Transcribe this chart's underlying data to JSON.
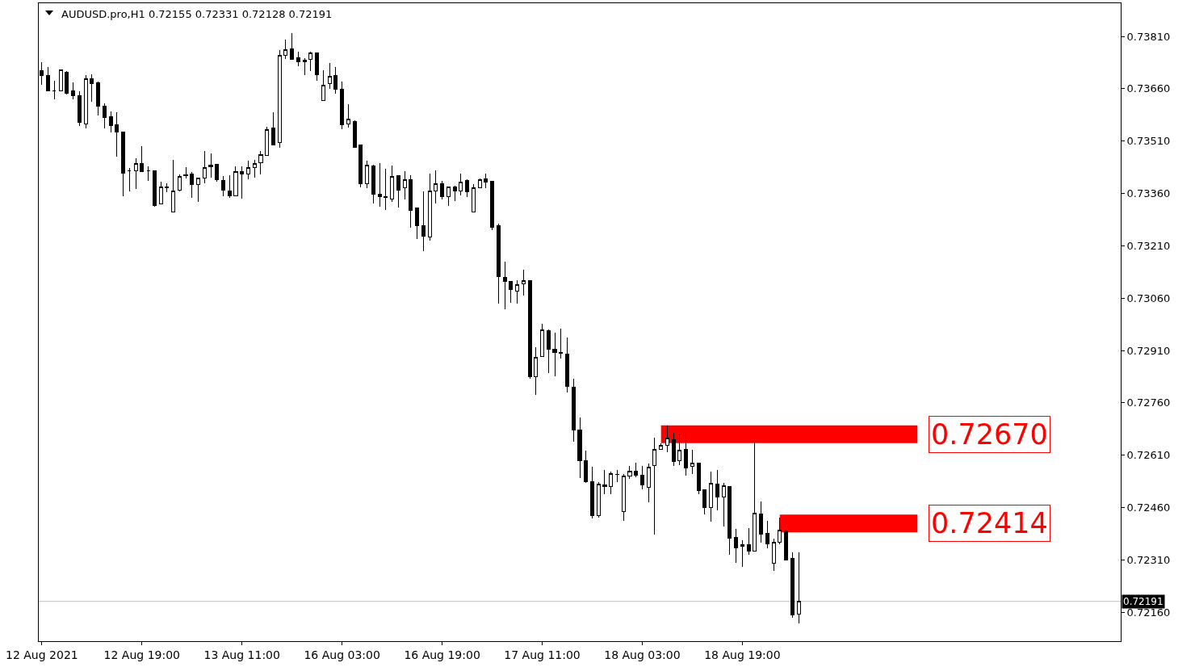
{
  "chart_data": {
    "type": "candlestick",
    "title": "AUDUSD.pro,H1 0.72155 0.72331 0.72128 0.72191",
    "color": "#000000",
    "categories": [
      "12 Aug 2021",
      null,
      null,
      null,
      null,
      null,
      null,
      null,
      null,
      null,
      null,
      null,
      null,
      null,
      null,
      null,
      "12 Aug 19:00",
      null,
      null,
      null,
      null,
      null,
      null,
      null,
      null,
      null,
      null,
      null,
      null,
      null,
      null,
      null,
      "13 Aug 11:00",
      null,
      null,
      null,
      null,
      null,
      null,
      null,
      null,
      null,
      null,
      null,
      null,
      null,
      null,
      null,
      "16 Aug 03:00",
      null,
      null,
      null,
      null,
      null,
      null,
      null,
      null,
      null,
      null,
      null,
      null,
      null,
      null,
      null,
      "16 Aug 19:00",
      null,
      null,
      null,
      null,
      null,
      null,
      null,
      null,
      null,
      null,
      null,
      null,
      null,
      null,
      null,
      "17 Aug 11:00",
      null,
      null,
      null,
      null,
      null,
      null,
      null,
      null,
      null,
      null,
      null,
      null,
      null,
      null,
      null,
      "18 Aug 03:00",
      null,
      null,
      null,
      null,
      null,
      null,
      null,
      null,
      null,
      null,
      null,
      null,
      null,
      null,
      null,
      "18 Aug 19:00",
      null,
      null,
      null,
      null,
      null,
      null,
      null,
      null,
      null,
      null,
      null,
      null,
      null,
      null,
      null,
      null,
      null,
      null,
      null,
      null,
      null,
      null,
      null,
      null,
      null,
      null,
      null,
      null,
      null,
      null,
      null,
      null,
      null,
      null,
      null,
      null,
      null,
      null,
      null,
      null,
      null,
      null,
      null,
      null,
      null,
      null,
      null,
      null,
      null,
      null,
      null,
      null,
      null,
      null,
      null,
      null,
      null,
      null,
      null,
      null
    ],
    "ohlc": [
      [
        0.73711,
        0.73736,
        0.73671,
        0.73699
      ],
      [
        0.73697,
        0.73722,
        0.73653,
        0.73655
      ],
      [
        0.73655,
        0.73683,
        0.7363,
        0.73655
      ],
      [
        0.73655,
        0.73713,
        0.73653,
        0.73713
      ],
      [
        0.73708,
        0.73711,
        0.73644,
        0.73648
      ],
      [
        0.73653,
        0.73678,
        0.7363,
        0.73639
      ],
      [
        0.73639,
        0.73653,
        0.73554,
        0.73563
      ],
      [
        0.7356,
        0.73699,
        0.73547,
        0.73688
      ],
      [
        0.73688,
        0.73701,
        0.73623,
        0.73674
      ],
      [
        0.73676,
        0.73681,
        0.73584,
        0.73609
      ],
      [
        0.73611,
        0.73618,
        0.73547,
        0.73577
      ],
      [
        0.73579,
        0.73595,
        0.73535,
        0.73554
      ],
      [
        0.73556,
        0.73593,
        0.73466,
        0.73537
      ],
      [
        0.73537,
        0.73537,
        0.73352,
        0.73419
      ],
      [
        0.73424,
        0.73433,
        0.73366,
        0.73424
      ],
      [
        0.73424,
        0.73461,
        0.73373,
        0.73445
      ],
      [
        0.73445,
        0.73496,
        0.73422,
        0.73422
      ],
      [
        0.73424,
        0.73438,
        0.73396,
        0.73424
      ],
      [
        0.73424,
        0.73424,
        0.73322,
        0.73325
      ],
      [
        0.73329,
        0.73394,
        0.73329,
        0.73378
      ],
      [
        0.73376,
        0.73389,
        0.73364,
        0.73378
      ],
      [
        0.73306,
        0.73456,
        0.73306,
        0.73366
      ],
      [
        0.73369,
        0.73415,
        0.73366,
        0.73408
      ],
      [
        0.7341,
        0.73436,
        0.73403,
        0.73413
      ],
      [
        0.73415,
        0.73422,
        0.73348,
        0.73385
      ],
      [
        0.73385,
        0.73406,
        0.73336,
        0.73403
      ],
      [
        0.73403,
        0.73482,
        0.73389,
        0.73433
      ],
      [
        0.73436,
        0.73475,
        0.73406,
        0.7344
      ],
      [
        0.73443,
        0.73443,
        0.73394,
        0.73399
      ],
      [
        0.73396,
        0.7341,
        0.73352,
        0.73369
      ],
      [
        0.73366,
        0.73413,
        0.73348,
        0.73352
      ],
      [
        0.73352,
        0.73438,
        0.73352,
        0.73422
      ],
      [
        0.73422,
        0.73438,
        0.73346,
        0.73415
      ],
      [
        0.73415,
        0.73454,
        0.73401,
        0.73433
      ],
      [
        0.73433,
        0.73456,
        0.73406,
        0.73445
      ],
      [
        0.73447,
        0.73482,
        0.73415,
        0.7347
      ],
      [
        0.73468,
        0.73551,
        0.73468,
        0.73544
      ],
      [
        0.73547,
        0.73593,
        0.735,
        0.735
      ],
      [
        0.73507,
        0.73771,
        0.73491,
        0.73755
      ],
      [
        0.73755,
        0.73801,
        0.73745,
        0.73771
      ],
      [
        0.73775,
        0.73819,
        0.73745,
        0.73745
      ],
      [
        0.73748,
        0.73766,
        0.73725,
        0.73738
      ],
      [
        0.73738,
        0.73748,
        0.73699,
        0.73743
      ],
      [
        0.73745,
        0.73766,
        0.73711,
        0.73762
      ],
      [
        0.73762,
        0.73762,
        0.73683,
        0.73701
      ],
      [
        0.73627,
        0.73713,
        0.73627,
        0.73669
      ],
      [
        0.73674,
        0.73734,
        0.7366,
        0.73695
      ],
      [
        0.73697,
        0.73722,
        0.73646,
        0.73658
      ],
      [
        0.73658,
        0.73681,
        0.73544,
        0.73556
      ],
      [
        0.73558,
        0.73616,
        0.73549,
        0.73572
      ],
      [
        0.73567,
        0.7357,
        0.73491,
        0.73493
      ],
      [
        0.73498,
        0.73498,
        0.73378,
        0.73389
      ],
      [
        0.73387,
        0.73454,
        0.73376,
        0.7344
      ],
      [
        0.73438,
        0.73443,
        0.73332,
        0.73357
      ],
      [
        0.73357,
        0.73447,
        0.73322,
        0.7335
      ],
      [
        0.7335,
        0.73431,
        0.73313,
        0.73348
      ],
      [
        0.73343,
        0.7344,
        0.73336,
        0.73408
      ],
      [
        0.7341,
        0.73413,
        0.7332,
        0.73369
      ],
      [
        0.73376,
        0.73424,
        0.73343,
        0.73399
      ],
      [
        0.73399,
        0.73413,
        0.73262,
        0.73311
      ],
      [
        0.73318,
        0.73318,
        0.7323,
        0.73267
      ],
      [
        0.73267,
        0.73366,
        0.73195,
        0.73237
      ],
      [
        0.73235,
        0.73417,
        0.73225,
        0.73366
      ],
      [
        0.73366,
        0.73426,
        0.73332,
        0.73387
      ],
      [
        0.73389,
        0.73396,
        0.73343,
        0.7335
      ],
      [
        0.7335,
        0.73378,
        0.73325,
        0.73378
      ],
      [
        0.73378,
        0.73383,
        0.73339,
        0.73366
      ],
      [
        0.73366,
        0.73417,
        0.73355,
        0.73392
      ],
      [
        0.73396,
        0.73401,
        0.7335,
        0.73364
      ],
      [
        0.73306,
        0.73387,
        0.73306,
        0.73376
      ],
      [
        0.73376,
        0.73403,
        0.73376,
        0.73399
      ],
      [
        0.73401,
        0.73417,
        0.73376,
        0.73392
      ],
      [
        0.73394,
        0.73394,
        0.73255,
        0.73262
      ],
      [
        0.73267,
        0.73274,
        0.73045,
        0.73121
      ],
      [
        0.73119,
        0.73165,
        0.73029,
        0.73108
      ],
      [
        0.73108,
        0.73108,
        0.73047,
        0.73084
      ],
      [
        0.7308,
        0.73112,
        0.73045,
        0.73098
      ],
      [
        0.73101,
        0.73142,
        0.73068,
        0.7311
      ],
      [
        0.7311,
        0.7311,
        0.72828,
        0.72835
      ],
      [
        0.72835,
        0.7292,
        0.72782,
        0.7289
      ],
      [
        0.72893,
        0.72987,
        0.72893,
        0.72969
      ],
      [
        0.72967,
        0.72971,
        0.72846,
        0.72913
      ],
      [
        0.72913,
        0.72962,
        0.72835,
        0.72904
      ],
      [
        0.72904,
        0.72973,
        0.72886,
        0.72902
      ],
      [
        0.729,
        0.72946,
        0.72789,
        0.72807
      ],
      [
        0.72805,
        0.72828,
        0.72648,
        0.72682
      ],
      [
        0.72682,
        0.72719,
        0.72544,
        0.72594
      ],
      [
        0.72594,
        0.72622,
        0.7253,
        0.72534
      ],
      [
        0.72534,
        0.72576,
        0.72428,
        0.72437
      ],
      [
        0.72437,
        0.72534,
        0.7243,
        0.72527
      ],
      [
        0.72525,
        0.72567,
        0.72497,
        0.72521
      ],
      [
        0.72521,
        0.72562,
        0.72497,
        0.72557
      ],
      [
        0.72555,
        0.72567,
        0.72532,
        0.72555
      ],
      [
        0.72449,
        0.72557,
        0.72421,
        0.72551
      ],
      [
        0.72551,
        0.72578,
        0.72541,
        0.72564
      ],
      [
        0.72564,
        0.72588,
        0.72546,
        0.72553
      ],
      [
        0.72553,
        0.72578,
        0.72511,
        0.72525
      ],
      [
        0.72518,
        0.72585,
        0.72474,
        0.72576
      ],
      [
        0.72581,
        0.72661,
        0.72382,
        0.72627
      ],
      [
        0.72627,
        0.72645,
        0.72625,
        0.72638
      ],
      [
        0.72638,
        0.72694,
        0.72618,
        0.72659
      ],
      [
        0.72655,
        0.72673,
        0.72578,
        0.72592
      ],
      [
        0.72594,
        0.72671,
        0.72581,
        0.72625
      ],
      [
        0.72627,
        0.72673,
        0.72551,
        0.72574
      ],
      [
        0.72578,
        0.72625,
        0.72555,
        0.72588
      ],
      [
        0.72588,
        0.72588,
        0.72497,
        0.72509
      ],
      [
        0.72511,
        0.72511,
        0.7244,
        0.7246
      ],
      [
        0.7246,
        0.72562,
        0.72419,
        0.7253
      ],
      [
        0.72527,
        0.72567,
        0.72451,
        0.7249
      ],
      [
        0.7249,
        0.7253,
        0.72405,
        0.72523
      ],
      [
        0.72521,
        0.72521,
        0.72324,
        0.72373
      ],
      [
        0.72375,
        0.72398,
        0.72301,
        0.72345
      ],
      [
        0.7235,
        0.72366,
        0.72289,
        0.72354
      ],
      [
        0.72354,
        0.724,
        0.72324,
        0.72336
      ],
      [
        0.72336,
        0.72648,
        0.72336,
        0.72444
      ],
      [
        0.72442,
        0.72477,
        0.72359,
        0.72384
      ],
      [
        0.72386,
        0.72421,
        0.72343,
        0.72356
      ],
      [
        0.72301,
        0.7237,
        0.72278,
        0.72361
      ],
      [
        0.72361,
        0.7243,
        0.72354,
        0.72396
      ],
      [
        0.72393,
        0.72398,
        0.72308,
        0.7231
      ],
      [
        0.72315,
        0.72331,
        0.72144,
        0.72153
      ],
      [
        0.72155,
        0.72331,
        0.72128,
        0.72191
      ],
      null,
      null,
      null,
      null,
      null,
      null,
      null,
      null,
      null,
      null,
      null,
      null,
      null,
      null,
      null,
      null,
      null,
      null,
      null,
      null,
      null,
      null,
      null,
      null,
      null,
      null,
      null,
      null,
      null,
      null,
      null,
      null,
      null,
      null,
      null,
      null,
      null,
      null,
      null,
      null,
      null,
      null,
      null,
      null,
      null,
      null,
      null,
      null,
      null,
      null,
      null
    ],
    "series": [
      {
        "type": "line",
        "color": "#ff0000",
        "values": [
          null,
          null,
          null,
          null,
          null,
          null,
          null,
          null,
          null,
          null,
          null,
          null,
          null,
          null,
          null,
          null,
          null,
          null,
          null,
          null,
          null,
          null,
          null,
          null,
          null,
          null,
          null,
          null,
          null,
          null,
          null,
          null,
          null,
          null,
          null,
          null,
          null,
          null,
          null,
          null,
          null,
          null,
          null,
          null,
          null,
          null,
          null,
          null,
          null,
          null,
          null,
          null,
          null,
          null,
          null,
          null,
          null,
          null,
          null,
          null,
          null,
          null,
          null,
          null,
          null,
          null,
          null,
          null,
          null,
          null,
          null,
          null,
          null,
          null,
          null,
          null,
          null,
          null,
          null,
          null,
          null,
          null,
          null,
          null,
          null,
          null,
          null,
          null,
          null,
          null,
          null,
          null,
          null,
          null,
          null,
          null,
          null,
          null,
          null,
          0.7267,
          0.7267,
          0.7267,
          0.7267,
          0.7267,
          0.7267,
          0.7267,
          0.7267,
          0.7267,
          0.7267,
          0.7267,
          0.7267,
          0.7267,
          0.7267,
          0.7267,
          0.7267,
          0.7267,
          0.7267,
          0.7267,
          0.7267,
          0.7267,
          0.7267,
          0.7267,
          0.7267,
          0.7267,
          0.7267,
          0.7267,
          0.7267,
          0.7267,
          0.7267,
          0.7267,
          0.7267,
          0.7267,
          0.7267,
          0.7267,
          0.7267,
          0.7267,
          0.7267,
          0.7267,
          0.7267,
          0.7267,
          0.7267,
          null,
          null,
          null,
          null,
          null,
          null,
          null,
          null,
          null,
          null,
          null,
          null,
          null,
          null,
          null,
          null,
          null,
          null,
          null,
          null,
          null,
          null,
          null,
          null,
          null,
          null,
          null,
          null,
          null,
          null,
          null,
          null
        ],
        "value_labels": [
          null,
          null,
          null,
          null,
          null,
          null,
          null,
          null,
          null,
          null,
          null,
          null,
          null,
          null,
          null,
          null,
          null,
          null,
          null,
          null,
          null,
          null,
          null,
          null,
          null,
          null,
          null,
          null,
          null,
          null,
          null,
          null,
          null,
          null,
          null,
          null,
          null,
          null,
          null,
          null,
          null,
          null,
          null,
          null,
          null,
          null,
          null,
          null,
          null,
          null,
          null,
          null,
          null,
          null,
          null,
          null,
          null,
          null,
          null,
          null,
          null,
          null,
          null,
          null,
          null,
          null,
          null,
          null,
          null,
          null,
          null,
          null,
          null,
          null,
          null,
          null,
          null,
          null,
          null,
          null,
          null,
          null,
          null,
          null,
          null,
          null,
          null,
          null,
          null,
          null,
          null,
          null,
          null,
          null,
          null,
          null,
          null,
          null,
          null,
          null,
          null,
          null,
          null,
          null,
          null,
          null,
          null,
          null,
          null,
          null,
          null,
          null,
          null,
          null,
          null,
          null,
          null,
          null,
          null,
          null,
          null,
          null,
          null,
          null,
          null,
          null,
          null,
          null,
          null,
          null,
          null,
          null,
          null,
          null,
          null,
          null,
          null,
          null,
          null,
          null,
          "0.72670",
          null,
          null,
          null,
          null,
          null,
          null,
          null,
          null,
          null,
          null,
          null,
          null,
          null,
          null,
          null,
          null,
          null,
          null,
          null,
          null,
          null,
          null,
          null,
          null,
          null,
          null,
          null,
          null,
          null,
          null,
          null,
          null
        ]
      },
      {
        "type": "line",
        "color": "#ff0000",
        "values": [
          null,
          null,
          null,
          null,
          null,
          null,
          null,
          null,
          null,
          null,
          null,
          null,
          null,
          null,
          null,
          null,
          null,
          null,
          null,
          null,
          null,
          null,
          null,
          null,
          null,
          null,
          null,
          null,
          null,
          null,
          null,
          null,
          null,
          null,
          null,
          null,
          null,
          null,
          null,
          null,
          null,
          null,
          null,
          null,
          null,
          null,
          null,
          null,
          null,
          null,
          null,
          null,
          null,
          null,
          null,
          null,
          null,
          null,
          null,
          null,
          null,
          null,
          null,
          null,
          null,
          null,
          null,
          null,
          null,
          null,
          null,
          null,
          null,
          null,
          null,
          null,
          null,
          null,
          null,
          null,
          null,
          null,
          null,
          null,
          null,
          null,
          null,
          null,
          null,
          null,
          null,
          null,
          null,
          null,
          null,
          null,
          null,
          null,
          null,
          null,
          null,
          null,
          null,
          null,
          null,
          null,
          null,
          null,
          null,
          null,
          null,
          null,
          null,
          null,
          null,
          null,
          null,
          null,
          0.72414,
          0.72414,
          0.72414,
          0.72414,
          0.72414,
          0.72414,
          0.72414,
          0.72414,
          0.72414,
          0.72414,
          0.72414,
          0.72414,
          0.72414,
          0.72414,
          0.72414,
          0.72414,
          0.72414,
          0.72414,
          0.72414,
          0.72414,
          0.72414,
          0.72414,
          0.72414,
          null,
          null,
          null,
          null,
          null,
          null,
          null,
          null,
          null,
          null,
          null,
          null,
          null,
          null,
          null,
          null,
          null,
          null,
          null,
          null,
          null,
          null,
          null,
          null,
          null,
          null,
          null,
          null,
          null,
          null,
          null,
          null
        ],
        "value_labels": [
          null,
          null,
          null,
          null,
          null,
          null,
          null,
          null,
          null,
          null,
          null,
          null,
          null,
          null,
          null,
          null,
          null,
          null,
          null,
          null,
          null,
          null,
          null,
          null,
          null,
          null,
          null,
          null,
          null,
          null,
          null,
          null,
          null,
          null,
          null,
          null,
          null,
          null,
          null,
          null,
          null,
          null,
          null,
          null,
          null,
          null,
          null,
          null,
          null,
          null,
          null,
          null,
          null,
          null,
          null,
          null,
          null,
          null,
          null,
          null,
          null,
          null,
          null,
          null,
          null,
          null,
          null,
          null,
          null,
          null,
          null,
          null,
          null,
          null,
          null,
          null,
          null,
          null,
          null,
          null,
          null,
          null,
          null,
          null,
          null,
          null,
          null,
          null,
          null,
          null,
          null,
          null,
          null,
          null,
          null,
          null,
          null,
          null,
          null,
          null,
          null,
          null,
          null,
          null,
          null,
          null,
          null,
          null,
          null,
          null,
          null,
          null,
          null,
          null,
          null,
          null,
          null,
          null,
          null,
          null,
          null,
          null,
          null,
          null,
          null,
          null,
          null,
          null,
          null,
          null,
          null,
          null,
          null,
          null,
          null,
          null,
          null,
          null,
          null,
          null,
          "0.72414",
          null,
          null,
          null,
          null,
          null,
          null,
          null,
          null,
          null,
          null,
          null,
          null,
          null,
          null,
          null,
          null,
          null,
          null,
          null,
          null,
          null,
          null,
          null,
          null,
          null,
          null,
          null,
          null,
          null,
          null,
          null,
          null
        ]
      }
    ],
    "ref_lines": [
      {
        "axis": "y",
        "value": 0.72191,
        "label": "0.72191",
        "color": "#c0c0c0"
      }
    ],
    "ylim": [
      0.72077,
      0.73905
    ],
    "yticks": [
      {
        "value": 0.7381,
        "label": "0.73810"
      },
      {
        "value": 0.7366,
        "label": "0.73660"
      },
      {
        "value": 0.7351,
        "label": "0.73510"
      },
      {
        "value": 0.7336,
        "label": "0.73360"
      },
      {
        "value": 0.7321,
        "label": "0.73210"
      },
      {
        "value": 0.7306,
        "label": "0.73060"
      },
      {
        "value": 0.7291,
        "label": "0.72910"
      },
      {
        "value": 0.7276,
        "label": "0.72760"
      },
      {
        "value": 0.7261,
        "label": "0.72610"
      },
      {
        "value": 0.7246,
        "label": "0.72460"
      },
      {
        "value": 0.7231,
        "label": "0.72310"
      },
      {
        "value": 0.7216,
        "label": "0.72160"
      }
    ]
  }
}
